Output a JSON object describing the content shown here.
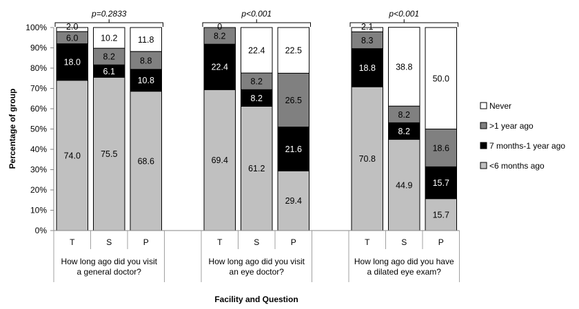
{
  "chart_data": {
    "type": "bar",
    "stacked": true,
    "title": "",
    "xlabel": "Facility and Question",
    "ylabel": "Percentage of group",
    "ylim": [
      0,
      100
    ],
    "yticks": [
      "0%",
      "10%",
      "20%",
      "30%",
      "40%",
      "50%",
      "60%",
      "70%",
      "80%",
      "90%",
      "100%"
    ],
    "grid": false,
    "legend_position": "right",
    "series": [
      {
        "name": "<6 months ago",
        "color": "#c0c0c0",
        "label_color": "#000000"
      },
      {
        "name": "7 months-1 year ago",
        "color": "#000000",
        "label_color": "#ffffff"
      },
      {
        "name": ">1 year ago",
        "color": "#808080",
        "label_color": "#000000"
      },
      {
        "name": "Never",
        "color": "#ffffff",
        "label_color": "#000000"
      }
    ],
    "legend_order": [
      "Never",
      ">1 year ago",
      "7 months-1 year ago",
      "<6 months ago"
    ],
    "groups": [
      {
        "question_lines": [
          "How long ago did you visit",
          "a general doctor?"
        ],
        "p_value": "p=0.2833",
        "bars": [
          {
            "category": "T",
            "values": [
              74.0,
              18.0,
              6.0,
              2.0
            ],
            "labels": [
              "74.0",
              "18.0",
              "6.0",
              "2.0"
            ]
          },
          {
            "category": "S",
            "values": [
              75.5,
              6.1,
              8.2,
              10.2
            ],
            "labels": [
              "75.5",
              "6.1",
              "8.2",
              "10.2"
            ]
          },
          {
            "category": "P",
            "values": [
              68.6,
              10.8,
              8.8,
              11.8
            ],
            "labels": [
              "68.6",
              "10.8",
              "8.8",
              "11.8"
            ]
          }
        ]
      },
      {
        "question_lines": [
          "How long ago did you visit",
          "an eye doctor?"
        ],
        "p_value": "p<0.001",
        "bars": [
          {
            "category": "T",
            "values": [
              69.4,
              22.4,
              8.2,
              0.0
            ],
            "labels": [
              "69.4",
              "22.4",
              "8.2",
              "0"
            ]
          },
          {
            "category": "S",
            "values": [
              61.2,
              8.2,
              8.2,
              22.4
            ],
            "labels": [
              "61.2",
              "8.2",
              "8.2",
              "22.4"
            ]
          },
          {
            "category": "P",
            "values": [
              29.4,
              21.6,
              26.5,
              22.5
            ],
            "labels": [
              "29.4",
              "21.6",
              "26.5",
              "22.5"
            ]
          }
        ]
      },
      {
        "question_lines": [
          "How long ago did you have",
          "a dilated eye exam?"
        ],
        "p_value": "p<0.001",
        "bars": [
          {
            "category": "T",
            "values": [
              70.8,
              18.8,
              8.3,
              2.1
            ],
            "labels": [
              "70.8",
              "18.8",
              "8.3",
              "2.1"
            ]
          },
          {
            "category": "S",
            "values": [
              44.9,
              8.2,
              8.2,
              38.8
            ],
            "labels": [
              "44.9",
              "8.2",
              "8.2",
              "38.8"
            ]
          },
          {
            "category": "P",
            "values": [
              15.7,
              15.7,
              18.6,
              50.0
            ],
            "labels": [
              "15.7",
              "15.7",
              "18.6",
              "50.0"
            ]
          }
        ]
      }
    ]
  }
}
